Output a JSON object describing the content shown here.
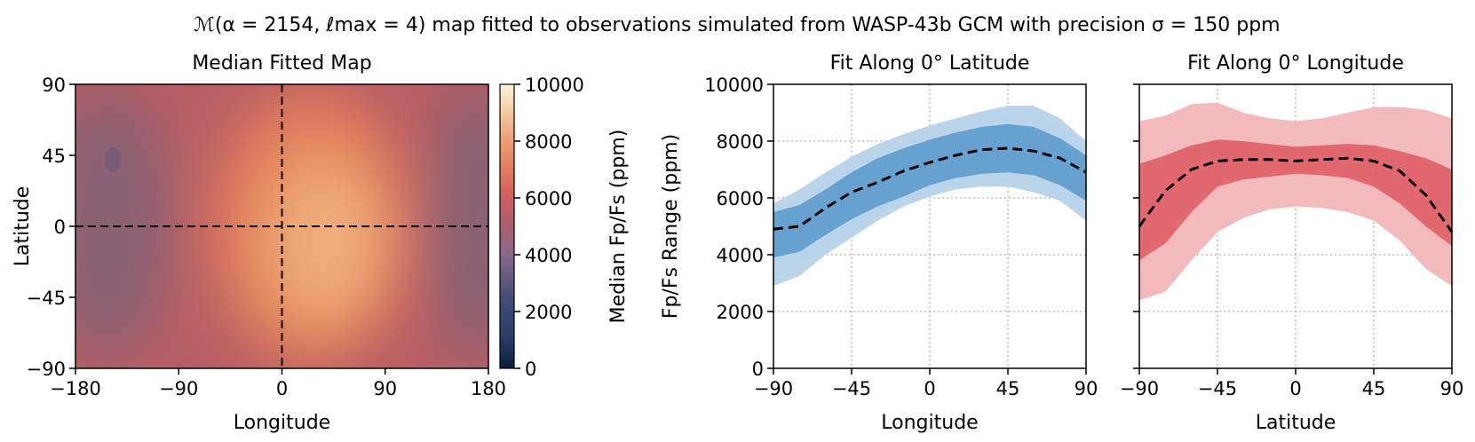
{
  "figure": {
    "suptitle": "ℳ(α = 2154, ℓmax = 4) map fitted to observations simulated from WASP-43b GCM with precision σ = 150 ppm"
  },
  "chart_data": [
    {
      "type": "heatmap",
      "title": "Median Fitted Map",
      "xlabel": "Longitude",
      "ylabel": "Latitude",
      "xlim": [
        -180,
        180
      ],
      "ylim": [
        -90,
        90
      ],
      "xticks": [
        "−180",
        "−90",
        "0",
        "90",
        "180"
      ],
      "yticks": [
        "90",
        "45",
        "0",
        "−45",
        "−90"
      ],
      "xtick_values": [
        -180,
        -90,
        0,
        90,
        180
      ],
      "ytick_values": [
        90,
        45,
        0,
        -45,
        -90
      ],
      "colorbar": {
        "label": "Median Fp/Fs (ppm)",
        "range": [
          0,
          10000
        ],
        "ticks": [
          "10000",
          "8000",
          "6000",
          "4000",
          "2000",
          "0"
        ],
        "tick_values": [
          10000,
          8000,
          6000,
          4000,
          2000,
          0
        ],
        "colormap": [
          "#08203f",
          "#2c3f68",
          "#5a5a85",
          "#8a6a88",
          "#c15a5f",
          "#e07b5b",
          "#eea57a",
          "#f5d3a8",
          "#fdf2de"
        ]
      },
      "reference_lines": {
        "latitude": 0,
        "longitude": 0
      },
      "hotspot": {
        "lon": 35,
        "lat": 0,
        "value": 8400
      },
      "coldspots": [
        {
          "lon": -145,
          "lat": 45,
          "value": 4300
        },
        {
          "lon": 175,
          "lat": 45,
          "value": 4300
        }
      ]
    },
    {
      "type": "area",
      "title": "Fit Along 0° Latitude",
      "xlabel": "Longitude",
      "ylabel": "Fp/Fs Range (ppm)",
      "xlim": [
        -90,
        90
      ],
      "ylim": [
        0,
        10000
      ],
      "xticks": [
        "−90",
        "−45",
        "0",
        "45",
        "90"
      ],
      "yticks": [
        "10000",
        "8000",
        "6000",
        "4000",
        "2000",
        "0"
      ],
      "xtick_values": [
        -90,
        -45,
        0,
        45,
        90
      ],
      "ytick_values": [
        10000,
        8000,
        6000,
        4000,
        2000,
        0
      ],
      "grid": true,
      "colors": {
        "outer": "#bad5ea",
        "inner": "#67a1cf"
      },
      "x": [
        -90,
        -75,
        -60,
        -45,
        -30,
        -15,
        0,
        15,
        30,
        45,
        60,
        75,
        90
      ],
      "median": [
        4900,
        5000,
        5650,
        6200,
        6550,
        6950,
        7250,
        7500,
        7700,
        7750,
        7650,
        7400,
        6900
      ],
      "inner_low": [
        3900,
        4100,
        4700,
        5250,
        5700,
        6050,
        6450,
        6700,
        6850,
        6900,
        6800,
        6450,
        5900
      ],
      "inner_high": [
        5500,
        5750,
        6300,
        6900,
        7400,
        7750,
        8050,
        8300,
        8500,
        8600,
        8500,
        8100,
        7500
      ],
      "outer_low": [
        2900,
        3250,
        4000,
        4600,
        5200,
        5700,
        6050,
        6300,
        6400,
        6400,
        6200,
        5900,
        5200
      ],
      "outer_high": [
        5800,
        6300,
        6900,
        7450,
        7900,
        8250,
        8550,
        8800,
        9050,
        9250,
        9250,
        8800,
        8000
      ]
    },
    {
      "type": "area",
      "title": "Fit Along 0° Longitude",
      "xlabel": "Latitude",
      "xlim": [
        -90,
        90
      ],
      "ylim": [
        0,
        10000
      ],
      "xticks": [
        "−90",
        "−45",
        "0",
        "45",
        "90"
      ],
      "xtick_values": [
        -90,
        -45,
        0,
        45,
        90
      ],
      "ytick_values": [
        10000,
        8000,
        6000,
        4000,
        2000,
        0
      ],
      "grid": true,
      "colors": {
        "outer": "#f2babc",
        "inner": "#e2686f"
      },
      "x": [
        -90,
        -75,
        -60,
        -45,
        -30,
        -15,
        0,
        15,
        30,
        45,
        60,
        75,
        90
      ],
      "median": [
        5000,
        6250,
        7000,
        7300,
        7350,
        7350,
        7300,
        7350,
        7400,
        7300,
        6950,
        6100,
        4800
      ],
      "inner_low": [
        3800,
        4400,
        5500,
        6400,
        6650,
        6750,
        6850,
        6800,
        6700,
        6400,
        5800,
        5000,
        4300
      ],
      "inner_high": [
        7200,
        7500,
        7850,
        8050,
        8000,
        7900,
        7800,
        7850,
        7900,
        7850,
        7650,
        7400,
        7000
      ],
      "outer_low": [
        2400,
        2700,
        3800,
        4800,
        5300,
        5600,
        5700,
        5650,
        5500,
        5200,
        4500,
        3500,
        2900
      ],
      "outer_high": [
        8700,
        8900,
        9300,
        9350,
        9000,
        8800,
        8700,
        8800,
        9000,
        9200,
        9200,
        9100,
        8800
      ]
    }
  ]
}
